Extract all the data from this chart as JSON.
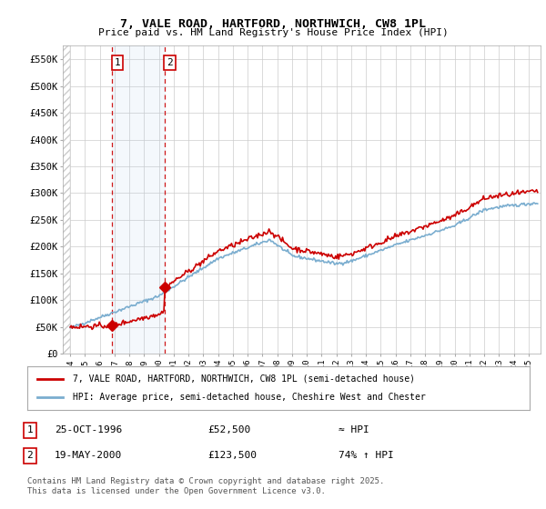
{
  "title": "7, VALE ROAD, HARTFORD, NORTHWICH, CW8 1PL",
  "subtitle": "Price paid vs. HM Land Registry's House Price Index (HPI)",
  "legend_line1": "7, VALE ROAD, HARTFORD, NORTHWICH, CW8 1PL (semi-detached house)",
  "legend_line2": "HPI: Average price, semi-detached house, Cheshire West and Chester",
  "transaction1_label": "1",
  "transaction1_date": "25-OCT-1996",
  "transaction1_price": "£52,500",
  "transaction1_hpi": "≈ HPI",
  "transaction1_year": 1996.82,
  "transaction1_value": 52500,
  "transaction2_label": "2",
  "transaction2_date": "19-MAY-2000",
  "transaction2_price": "£123,500",
  "transaction2_hpi": "74% ↑ HPI",
  "transaction2_year": 2000.38,
  "transaction2_value": 123500,
  "red_color": "#cc0000",
  "blue_color": "#7aadcf",
  "background_color": "#ffffff",
  "grid_color": "#cccccc",
  "footnote": "Contains HM Land Registry data © Crown copyright and database right 2025.\nThis data is licensed under the Open Government Licence v3.0.",
  "ylim": [
    0,
    575000
  ],
  "xlim_start": 1993.5,
  "xlim_end": 2025.8
}
